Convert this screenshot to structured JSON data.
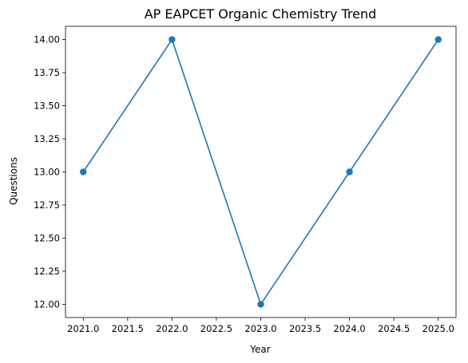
{
  "chart_data": {
    "type": "line",
    "title": "AP EAPCET Organic Chemistry Trend",
    "xlabel": "Year",
    "ylabel": "Questions",
    "x": [
      2021,
      2022,
      2023,
      2024,
      2025
    ],
    "series": [
      {
        "values": [
          13,
          14,
          12,
          13,
          14
        ],
        "color": "#1f77b4",
        "marker": "circle"
      }
    ],
    "xlim": [
      2020.8,
      2025.2
    ],
    "ylim": [
      11.9,
      14.1
    ],
    "xticks": [
      2021.0,
      2021.5,
      2022.0,
      2022.5,
      2023.0,
      2023.5,
      2024.0,
      2024.5,
      2025.0
    ],
    "xtick_labels": [
      "2021.0",
      "2021.5",
      "2022.0",
      "2022.5",
      "2023.0",
      "2023.5",
      "2024.0",
      "2024.5",
      "2025.0"
    ],
    "yticks": [
      12.0,
      12.25,
      12.5,
      12.75,
      13.0,
      13.25,
      13.5,
      13.75,
      14.0
    ],
    "ytick_labels": [
      "12.00",
      "12.25",
      "12.50",
      "12.75",
      "13.00",
      "13.25",
      "13.50",
      "13.75",
      "14.00"
    ],
    "grid": false,
    "legend": "none"
  }
}
